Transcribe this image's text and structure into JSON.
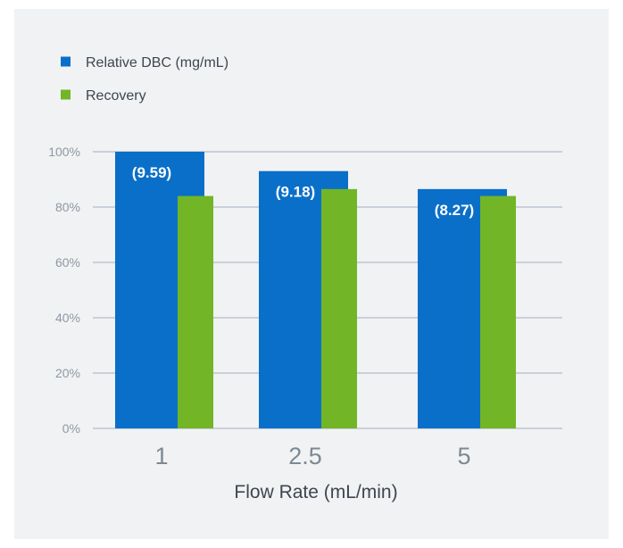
{
  "chart_data": {
    "type": "bar",
    "categories": [
      "1",
      "2.5",
      "5"
    ],
    "series": [
      {
        "name": "Relative DBC (mg/mL)",
        "values": [
          100,
          93,
          86.5
        ],
        "data_labels": [
          "(9.59)",
          "(9.18)",
          "(8.27)"
        ],
        "color": "#0a6fc8"
      },
      {
        "name": "Recovery",
        "values": [
          84,
          86.5,
          84
        ],
        "color": "#72b526"
      }
    ],
    "title": "",
    "xlabel": "Flow Rate (mL/min)",
    "ylabel": "",
    "ylim": [
      0,
      100
    ],
    "yticks": [
      0,
      20,
      40,
      60,
      80,
      100
    ],
    "ytick_labels": [
      "0%",
      "20%",
      "40%",
      "60%",
      "80%",
      "100%"
    ],
    "grid": true,
    "legend_position": "top-left"
  },
  "colors": {
    "panel_background": "#f1f2f4",
    "gridline": "#b3bcc6",
    "tick_label": "#8e98a3",
    "category_label": "#7e8893",
    "axis_title": "#3d4650",
    "legend_text": "#3d4650",
    "data_label": "#ffffff"
  }
}
